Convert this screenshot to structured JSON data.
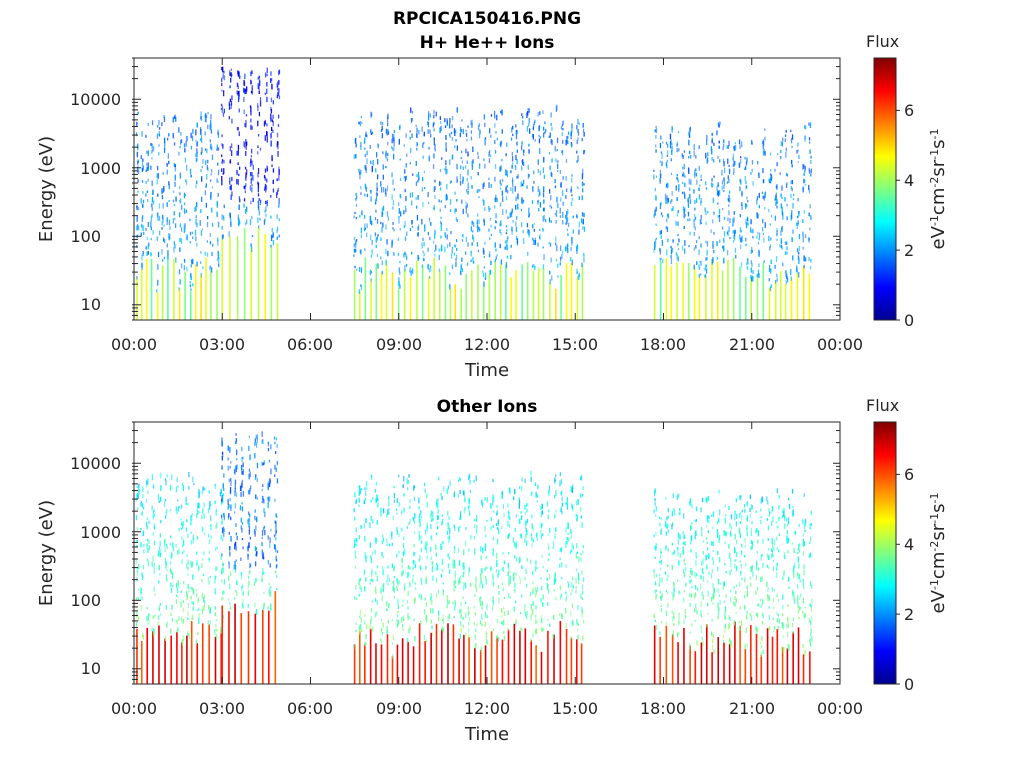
{
  "title_line1": "RPCICA150416.PNG",
  "colorbar_ticks": [
    "0",
    "2",
    "4",
    "6"
  ],
  "colorscale": [
    "#00008f",
    "#0000ff",
    "#00ffff",
    "#ffff00",
    "#ff0000",
    "#800000"
  ],
  "chart_data": [
    {
      "type": "heatmap",
      "title": "H+ He++ Ions",
      "xlabel": "Time",
      "ylabel": "Energy (eV)",
      "x_ticks": [
        "00:00",
        "03:00",
        "06:00",
        "09:00",
        "12:00",
        "15:00",
        "18:00",
        "21:00",
        "00:00"
      ],
      "xlim_hours": [
        0,
        24
      ],
      "y_ticks": [
        "10",
        "100",
        "1000",
        "10000"
      ],
      "y_tick_values": [
        10,
        100,
        1000,
        10000
      ],
      "y_scale": "log",
      "ylim": [
        6,
        40000
      ],
      "colorbar_label": "Flux",
      "colorbar_units": "eV-1cm-2sr-1s-1",
      "colorbar_range": [
        0,
        7.5
      ],
      "data_intervals_hours": [
        [
          0.1,
          3.0
        ],
        [
          3.0,
          5.0
        ],
        [
          7.5,
          15.3
        ],
        [
          17.7,
          23.0
        ]
      ],
      "burst_intervals_hours": [
        [
          3.0,
          5.0
        ]
      ],
      "typical_flux": {
        "low_energy": 4.0,
        "mid_energy": 2.3,
        "high_energy": 1.6,
        "burst_high_energy": 0.7
      }
    },
    {
      "type": "heatmap",
      "title": "Other Ions",
      "xlabel": "Time",
      "ylabel": "Energy (eV)",
      "x_ticks": [
        "00:00",
        "03:00",
        "06:00",
        "09:00",
        "12:00",
        "15:00",
        "18:00",
        "21:00",
        "00:00"
      ],
      "xlim_hours": [
        0,
        24
      ],
      "y_ticks": [
        "10",
        "100",
        "1000",
        "10000"
      ],
      "y_tick_values": [
        10,
        100,
        1000,
        10000
      ],
      "y_scale": "log",
      "ylim": [
        6,
        40000
      ],
      "colorbar_label": "Flux",
      "colorbar_units": "eV-1cm-2sr-1s-1",
      "colorbar_range": [
        0,
        7.5
      ],
      "data_intervals_hours": [
        [
          0.1,
          3.0
        ],
        [
          3.0,
          5.0
        ],
        [
          7.5,
          15.3
        ],
        [
          17.7,
          23.0
        ]
      ],
      "burst_intervals_hours": [
        [
          3.0,
          5.0
        ]
      ],
      "typical_flux": {
        "low_energy": 5.8,
        "mid_energy": 4.0,
        "high_energy": 2.2,
        "burst_high_energy": 1.5
      }
    }
  ]
}
